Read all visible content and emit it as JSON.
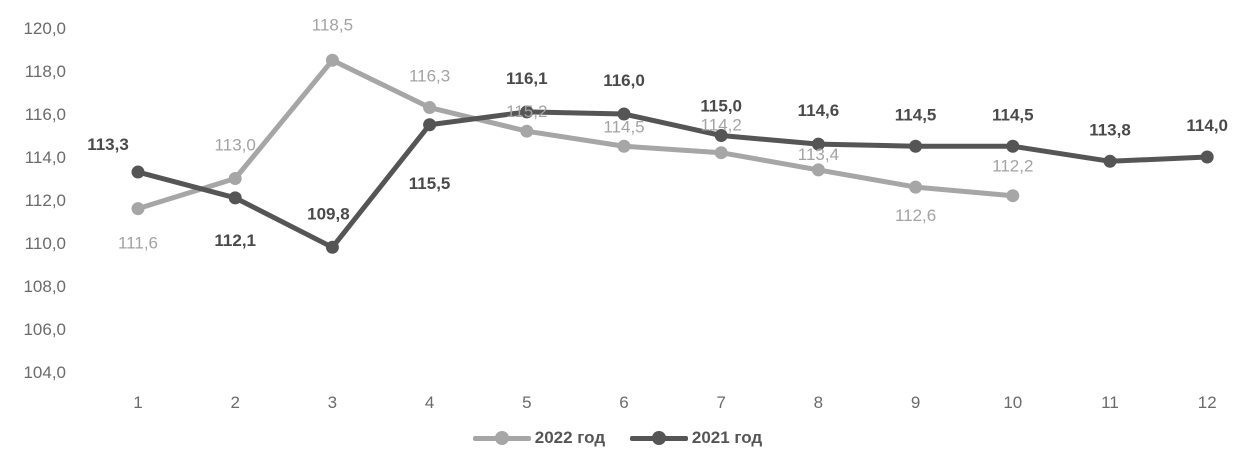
{
  "chart_data": {
    "type": "line",
    "title": "",
    "xlabel": "",
    "ylabel": "",
    "categories": [
      "1",
      "2",
      "3",
      "4",
      "5",
      "6",
      "7",
      "8",
      "9",
      "10",
      "11",
      "12"
    ],
    "ylim": [
      104,
      120
    ],
    "yticks": [
      "104,0",
      "106,0",
      "108,0",
      "110,0",
      "112,0",
      "114,0",
      "116,0",
      "118,0",
      "120,0"
    ],
    "grid": false,
    "legend_position": "bottom",
    "series": [
      {
        "name": "2022 год",
        "color": "#a6a6a6",
        "values": [
          111.6,
          113.0,
          118.5,
          116.3,
          115.2,
          114.5,
          114.2,
          113.4,
          112.6,
          112.2,
          null,
          null
        ],
        "labels": [
          "111,6",
          "113,0",
          "118,5",
          "116,3",
          "115,2",
          "114,5",
          "114,2",
          "113,4",
          "112,6",
          "112,2",
          null,
          null
        ]
      },
      {
        "name": "2021 год",
        "color": "#555555",
        "values": [
          113.3,
          112.1,
          109.8,
          115.5,
          116.1,
          116.0,
          115.0,
          114.6,
          114.5,
          114.5,
          113.8,
          114.0
        ],
        "labels": [
          "113,3",
          "112,1",
          "109,8",
          "115,5",
          "116,1",
          "116,0",
          "115,0",
          "114,6",
          "114,5",
          "114,5",
          "113,8",
          "114,0"
        ]
      }
    ]
  }
}
